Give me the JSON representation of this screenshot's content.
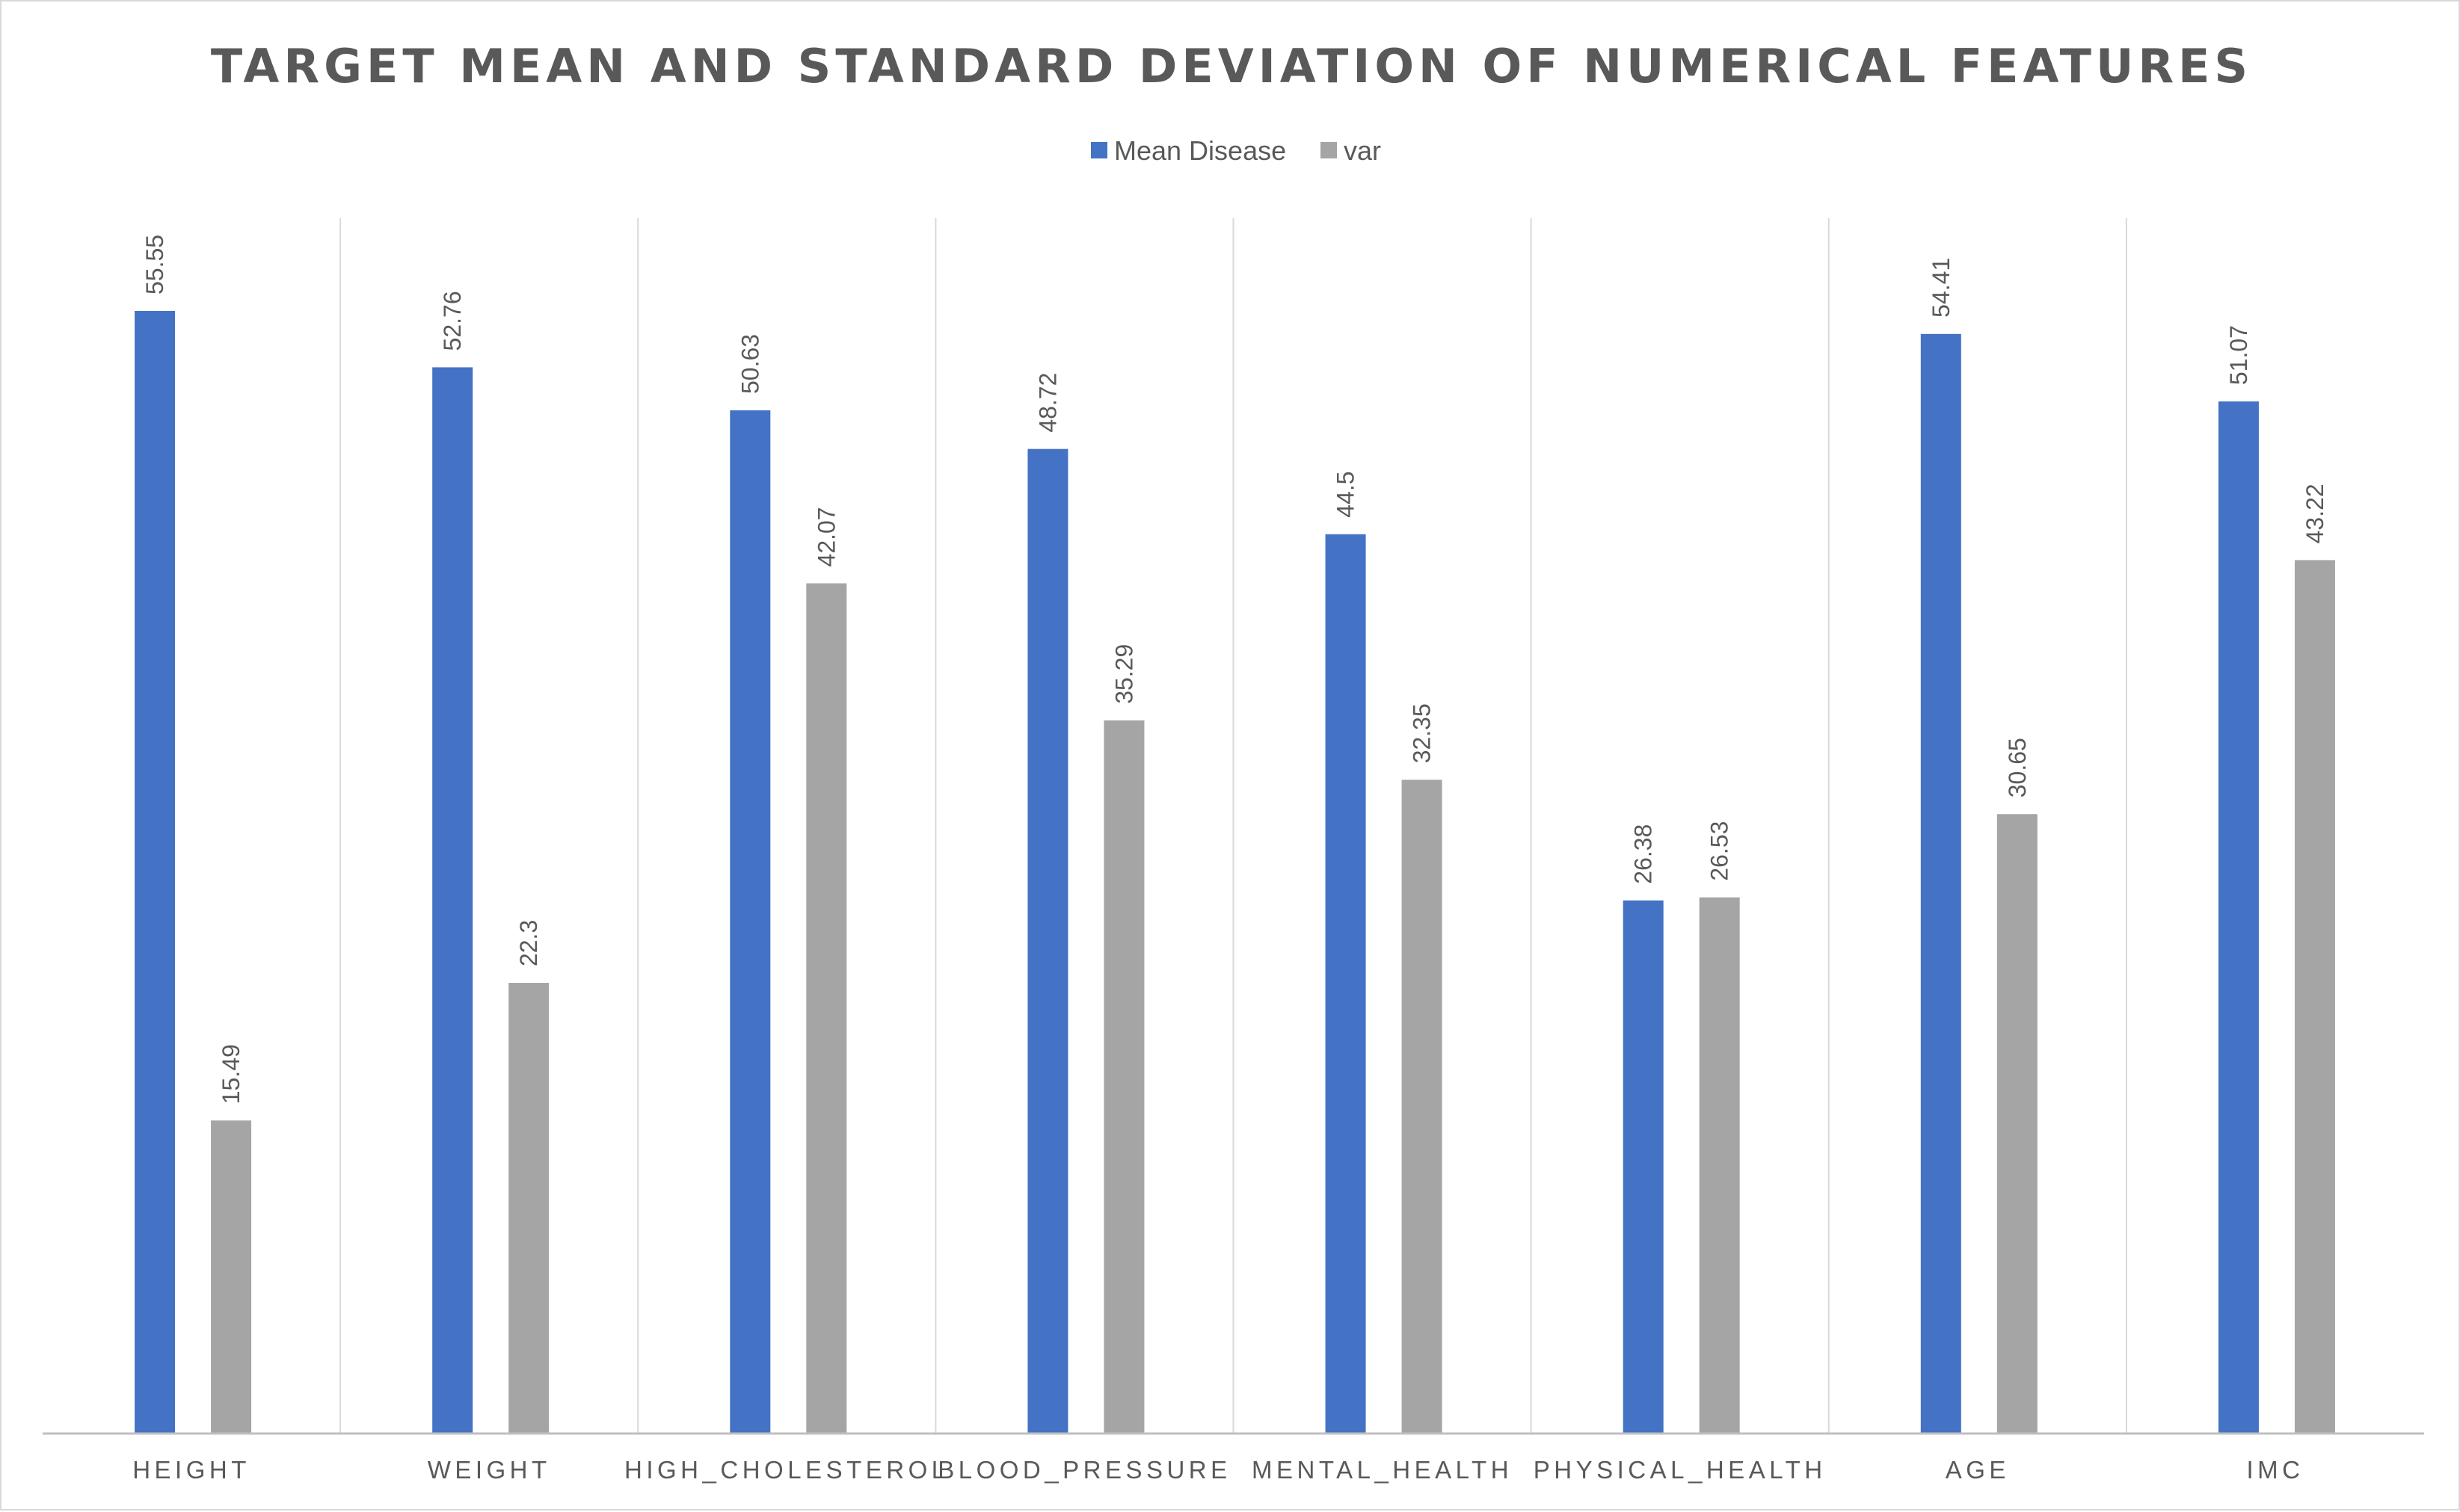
{
  "chart_data": {
    "type": "bar",
    "title": "TARGET MEAN AND STANDARD DEVIATION OF NUMERICAL FEATURES",
    "xlabel": "",
    "ylabel": "",
    "categories": [
      "HEIGHT",
      "WEIGHT",
      "HIGH_CHOLESTEROL",
      "BLOOD_PRESSURE",
      "MENTAL_HEALTH",
      "PHYSICAL_HEALTH",
      "AGE",
      "IMC"
    ],
    "series": [
      {
        "name": "Mean Disease",
        "color": "#4472c4",
        "values": [
          55.55,
          52.76,
          50.63,
          48.72,
          44.5,
          26.38,
          54.41,
          51.07
        ],
        "labels": [
          "55.55",
          "52.76",
          "50.63",
          "48.72",
          "44.5",
          "26.38",
          "54.41",
          "51.07"
        ]
      },
      {
        "name": "var",
        "color": "#a5a5a5",
        "values": [
          15.49,
          22.3,
          42.07,
          35.29,
          32.35,
          26.53,
          30.65,
          43.22
        ],
        "labels": [
          "15.49",
          "22.3",
          "42.07",
          "35.29",
          "32.35",
          "26.53",
          "30.65",
          "43.22"
        ]
      }
    ],
    "ylim": [
      0,
      60
    ],
    "grid": "vertical category separators",
    "legend_position": "top-center",
    "data_labels": "rotated above bars"
  }
}
